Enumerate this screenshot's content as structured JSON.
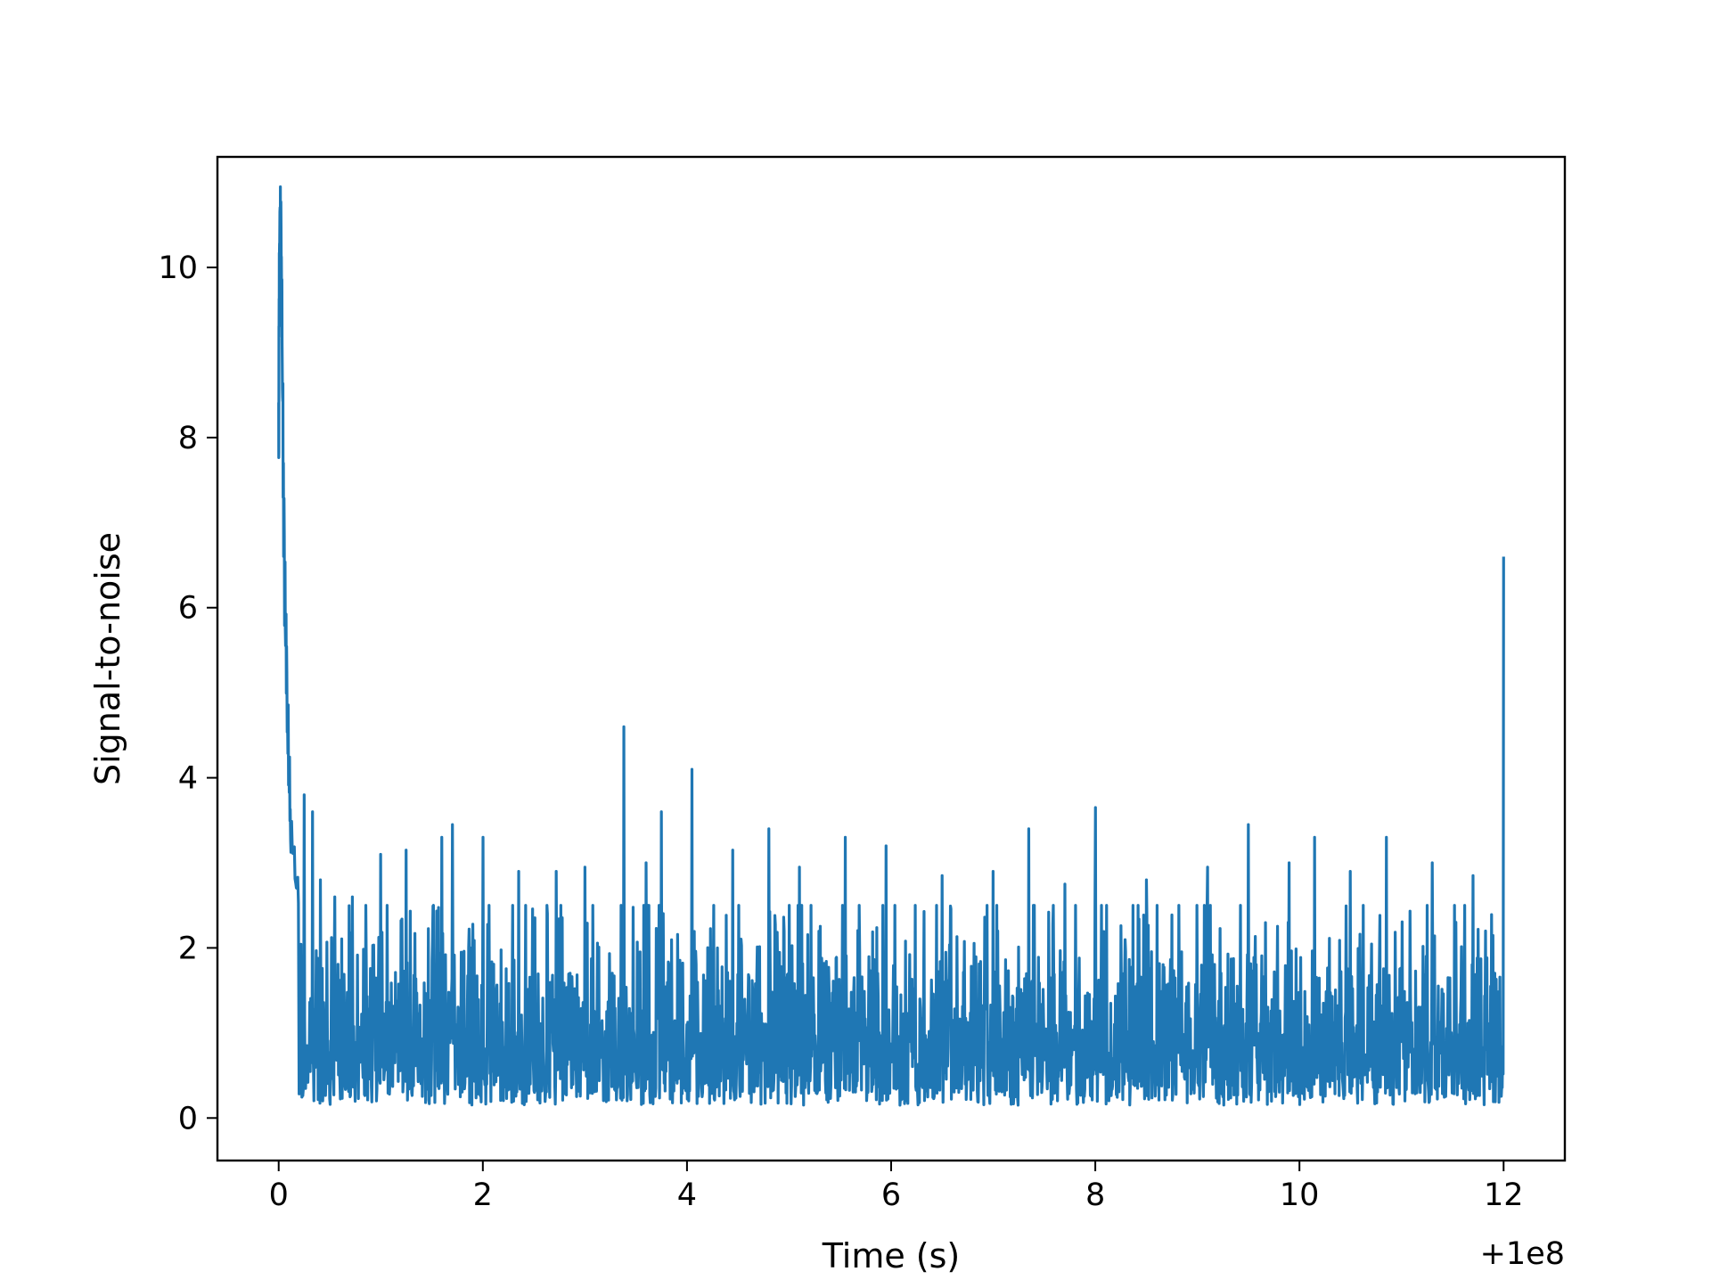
{
  "chart_data": {
    "type": "line",
    "title": "",
    "xlabel": "Time (s)",
    "ylabel": "Signal-to-noise",
    "x_offset_label": "+1e8",
    "xlim": [
      -0.6,
      12.6
    ],
    "ylim": [
      -0.5,
      11.3
    ],
    "xticks": [
      0,
      2,
      4,
      6,
      8,
      10,
      12
    ],
    "xtick_labels": [
      "0",
      "2",
      "4",
      "6",
      "8",
      "10",
      "12"
    ],
    "yticks": [
      0,
      2,
      4,
      6,
      8,
      10
    ],
    "ytick_labels": [
      "0",
      "2",
      "4",
      "6",
      "8",
      "10"
    ],
    "grid": false,
    "legend": "none",
    "line_color": "#1f77b4",
    "series": [
      {
        "x_range": [
          0,
          12
        ],
        "baseline_mean": 1.1,
        "initial_decay": [
          [
            0.0,
            8.1
          ],
          [
            0.01,
            10.7
          ],
          [
            0.03,
            9.9
          ],
          [
            0.05,
            6.8
          ],
          [
            0.08,
            5.2
          ],
          [
            0.12,
            3.2
          ],
          [
            0.2,
            2.6
          ]
        ],
        "peaks": [
          [
            0.25,
            3.8
          ],
          [
            0.33,
            3.6
          ],
          [
            0.41,
            2.8
          ],
          [
            0.55,
            2.6
          ],
          [
            0.72,
            2.6
          ],
          [
            1.0,
            3.1
          ],
          [
            1.25,
            3.15
          ],
          [
            1.6,
            3.3
          ],
          [
            1.7,
            3.45
          ],
          [
            2.0,
            3.3
          ],
          [
            2.35,
            2.9
          ],
          [
            2.72,
            2.9
          ],
          [
            3.0,
            2.95
          ],
          [
            3.38,
            4.6
          ],
          [
            3.6,
            3.0
          ],
          [
            3.75,
            3.6
          ],
          [
            4.05,
            4.1
          ],
          [
            4.45,
            3.15
          ],
          [
            4.8,
            3.4
          ],
          [
            5.1,
            2.95
          ],
          [
            5.55,
            3.3
          ],
          [
            5.95,
            3.2
          ],
          [
            6.5,
            2.85
          ],
          [
            7.0,
            2.9
          ],
          [
            7.35,
            3.4
          ],
          [
            7.7,
            2.75
          ],
          [
            8.0,
            3.65
          ],
          [
            8.5,
            2.8
          ],
          [
            9.1,
            2.95
          ],
          [
            9.5,
            3.45
          ],
          [
            9.9,
            3.0
          ],
          [
            10.15,
            3.3
          ],
          [
            10.5,
            2.9
          ],
          [
            10.85,
            3.3
          ],
          [
            11.3,
            3.0
          ],
          [
            11.7,
            2.85
          ],
          [
            12.0,
            6.6
          ]
        ]
      }
    ]
  }
}
